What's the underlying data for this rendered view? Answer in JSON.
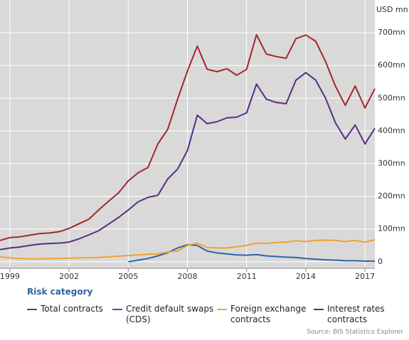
{
  "chart_data": {
    "type": "line",
    "y_axis_label": "USD mn",
    "legend_title": "Risk category",
    "source": "Source: BIS Statistics Explorer",
    "x": [
      1998.5,
      1999,
      1999.5,
      2000,
      2000.5,
      2001,
      2001.5,
      2002,
      2002.5,
      2003,
      2003.5,
      2004,
      2004.5,
      2005,
      2005.5,
      2006,
      2006.5,
      2007,
      2007.5,
      2008,
      2008.5,
      2009,
      2009.5,
      2010,
      2010.5,
      2011,
      2011.5,
      2012,
      2012.5,
      2013,
      2013.5,
      2014,
      2014.5,
      2015,
      2015.5,
      2016,
      2016.5,
      2017,
      2017.5
    ],
    "series": [
      {
        "name": "Total contracts",
        "color": "#a6262c",
        "values": [
          65,
          74,
          76,
          81,
          86,
          88,
          92,
          102,
          116,
          130,
          158,
          185,
          210,
          247,
          272,
          288,
          360,
          405,
          496,
          583,
          659,
          588,
          581,
          590,
          570,
          588,
          694,
          635,
          627,
          622,
          682,
          693,
          674,
          612,
          537,
          478,
          537,
          470,
          529
        ]
      },
      {
        "name": "Credit default swaps (CDS)",
        "color": "#2f64a0",
        "values": [
          null,
          null,
          null,
          null,
          null,
          null,
          null,
          null,
          null,
          null,
          null,
          null,
          null,
          0,
          5,
          10,
          18,
          28,
          42,
          52,
          50,
          33,
          27,
          24,
          21,
          20,
          22,
          18,
          16,
          14,
          13,
          10,
          8,
          6,
          5,
          3,
          3,
          2,
          2
        ]
      },
      {
        "name": "Foreign exchange contracts",
        "color": "#f0a22e",
        "values": [
          15,
          12,
          10,
          9,
          9,
          10,
          10,
          11,
          12,
          12,
          13,
          15,
          17,
          19,
          21,
          23,
          24,
          30,
          33,
          50,
          57,
          44,
          42,
          42,
          46,
          50,
          57,
          56,
          59,
          60,
          64,
          62,
          65,
          66,
          65,
          62,
          65,
          60,
          67
        ]
      },
      {
        "name": "Interest rates contracts",
        "color": "#5b2d82",
        "values": [
          37,
          42,
          45,
          50,
          54,
          56,
          57,
          60,
          70,
          82,
          95,
          115,
          135,
          158,
          183,
          197,
          203,
          253,
          283,
          340,
          448,
          422,
          428,
          440,
          442,
          455,
          543,
          497,
          487,
          483,
          555,
          578,
          555,
          500,
          425,
          375,
          418,
          360,
          408
        ]
      }
    ],
    "xlim": [
      1998.5,
      2017.5
    ],
    "xticks": [
      1999,
      2002,
      2005,
      2008,
      2011,
      2014,
      2017
    ],
    "ylim": [
      -20,
      800
    ],
    "yticks": [
      0,
      {
        "value": 100,
        "label": "100mn"
      },
      {
        "value": 200,
        "label": "200mn"
      },
      {
        "value": 300,
        "label": "300mn"
      },
      {
        "value": 400,
        "label": "400mn"
      },
      {
        "value": 500,
        "label": "500mn"
      },
      {
        "value": 600,
        "label": "600mn"
      },
      {
        "value": 700,
        "label": "700mn"
      }
    ],
    "grid": true
  }
}
